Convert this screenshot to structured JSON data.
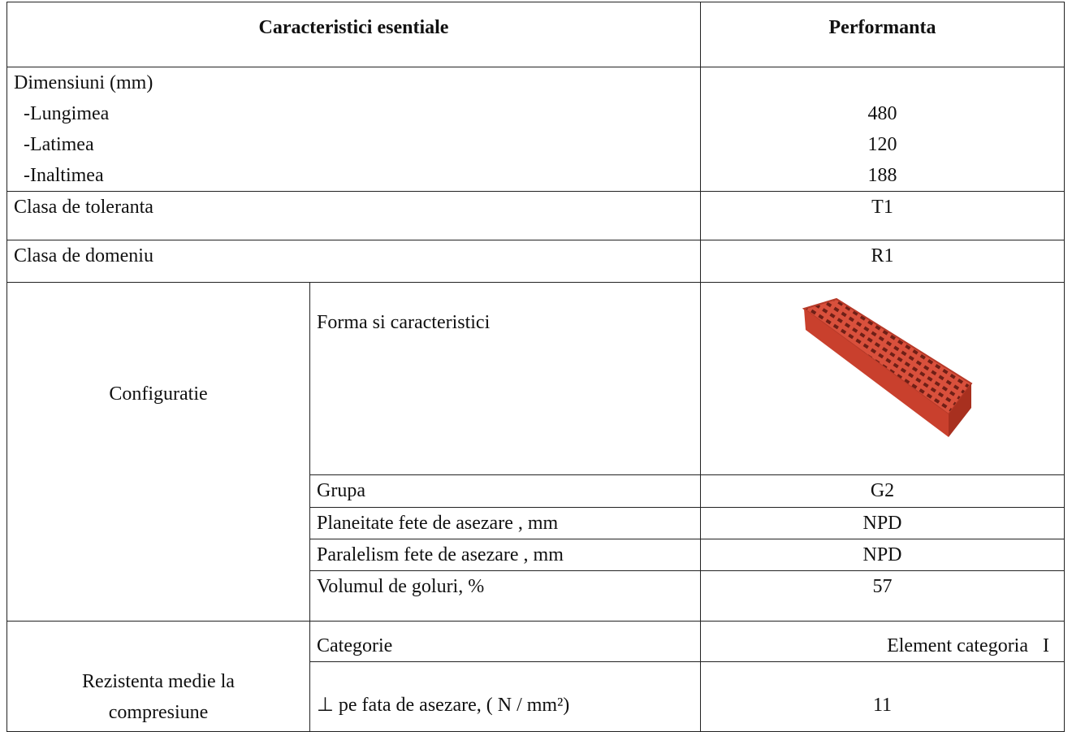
{
  "header": [
    "Caracteristici esentiale",
    "Performanta"
  ],
  "dimensions": {
    "label": "Dimensiuni (mm)",
    "items": [
      {
        "name": "-Lungimea",
        "value": 480
      },
      {
        "name": "-Latimea",
        "value": 120
      },
      {
        "name": "-Inaltimea",
        "value": 188
      }
    ]
  },
  "tolerance": {
    "label": "Clasa de toleranta",
    "value": "T1"
  },
  "domain": {
    "label": "Clasa de domeniu",
    "value": "R1"
  },
  "configuration": {
    "label": "Configuratie",
    "rows": [
      {
        "name": "Forma si caracteristici"
      },
      {
        "name": "Grupa",
        "value": "G2"
      },
      {
        "name": "Planeitate fete de asezare , mm",
        "value": "NPD"
      },
      {
        "name": "Paralelism fete de asezare , mm",
        "value": "NPD"
      },
      {
        "name": "Volumul de goluri, %",
        "value": 57
      }
    ]
  },
  "resistance": {
    "label": "Rezistenta medie la\ncompresiune",
    "rows": [
      {
        "name": "Categorie",
        "value": "Element categoria   I"
      },
      {
        "name": "⊥ pe fata de asezare, ( N / mm²)",
        "value": 11
      }
    ]
  }
}
